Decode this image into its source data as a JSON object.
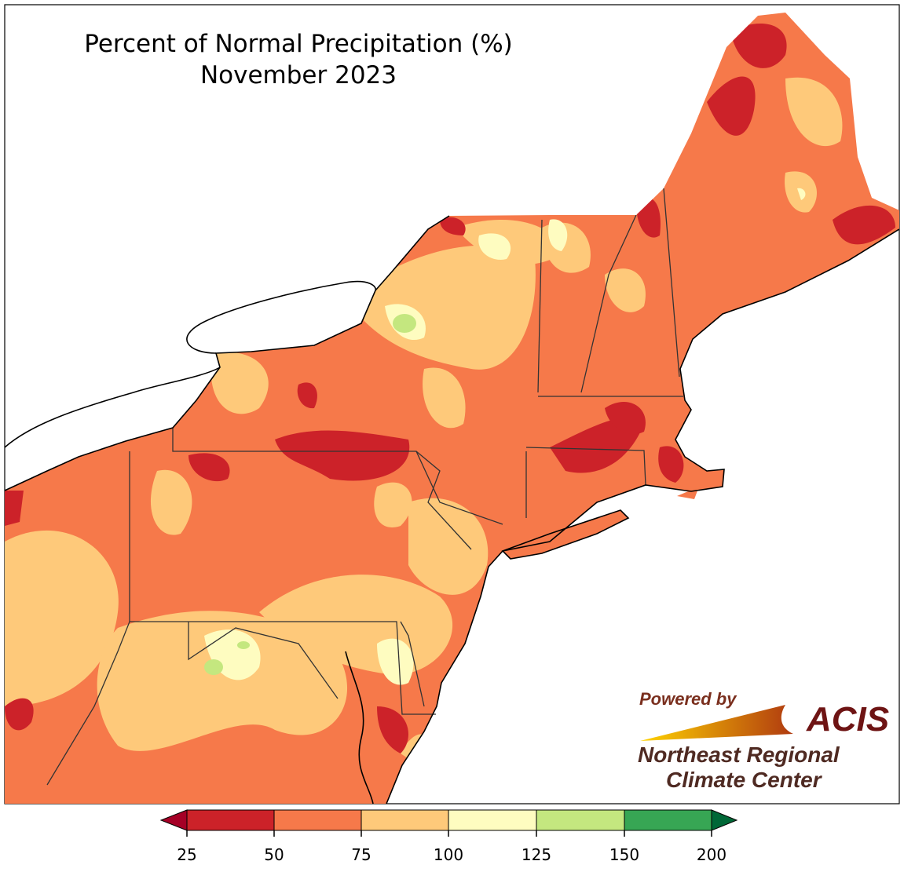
{
  "title": "Percent of Normal Precipitation (%)",
  "subtitle": "November 2023",
  "logo": {
    "powered_by": "Powered by",
    "brand": "ACIS",
    "org_line1": "Northeast Regional",
    "org_line2": "Climate Center"
  },
  "legend": {
    "ticks": [
      "25",
      "50",
      "75",
      "100",
      "125",
      "150",
      "200"
    ],
    "colors": {
      "below_25": "#a50026",
      "25_50": "#cc2229",
      "50_75": "#f6794a",
      "75_100": "#fec97a",
      "100_125": "#fefcc0",
      "125_150": "#c4e77f",
      "150_200": "#37a654",
      "above_200": "#006837"
    }
  }
}
